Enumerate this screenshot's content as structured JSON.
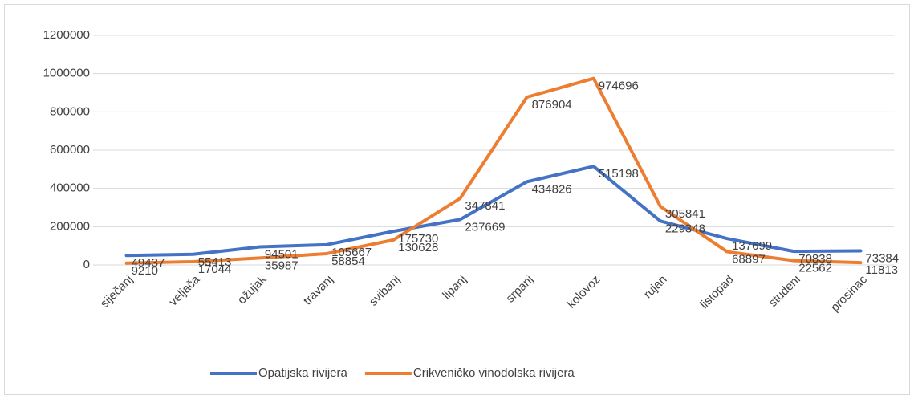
{
  "chart_data": {
    "type": "line",
    "categories": [
      "siječanj",
      "veljača",
      "ožujak",
      "travanj",
      "svibanj",
      "lipanj",
      "srpanj",
      "kolovoz",
      "rujan",
      "listopad",
      "studeni",
      "prosinac"
    ],
    "series": [
      {
        "name": "Opatijska rivijera",
        "color": "#4472c4",
        "values": [
          49437,
          55413,
          94501,
          105667,
          175730,
          237669,
          434826,
          515198,
          229348,
          137699,
          70838,
          73384
        ]
      },
      {
        "name": "Crikveničko vinodolska rivijera",
        "color": "#ed7d31",
        "values": [
          9210,
          17044,
          35987,
          58854,
          130628,
          347841,
          876904,
          974696,
          305841,
          68897,
          22562,
          11813
        ]
      }
    ],
    "ylim": [
      0,
      1200000
    ],
    "yticks": [
      0,
      200000,
      400000,
      600000,
      800000,
      1000000,
      1200000
    ],
    "grid": true,
    "legend": "bottom"
  }
}
